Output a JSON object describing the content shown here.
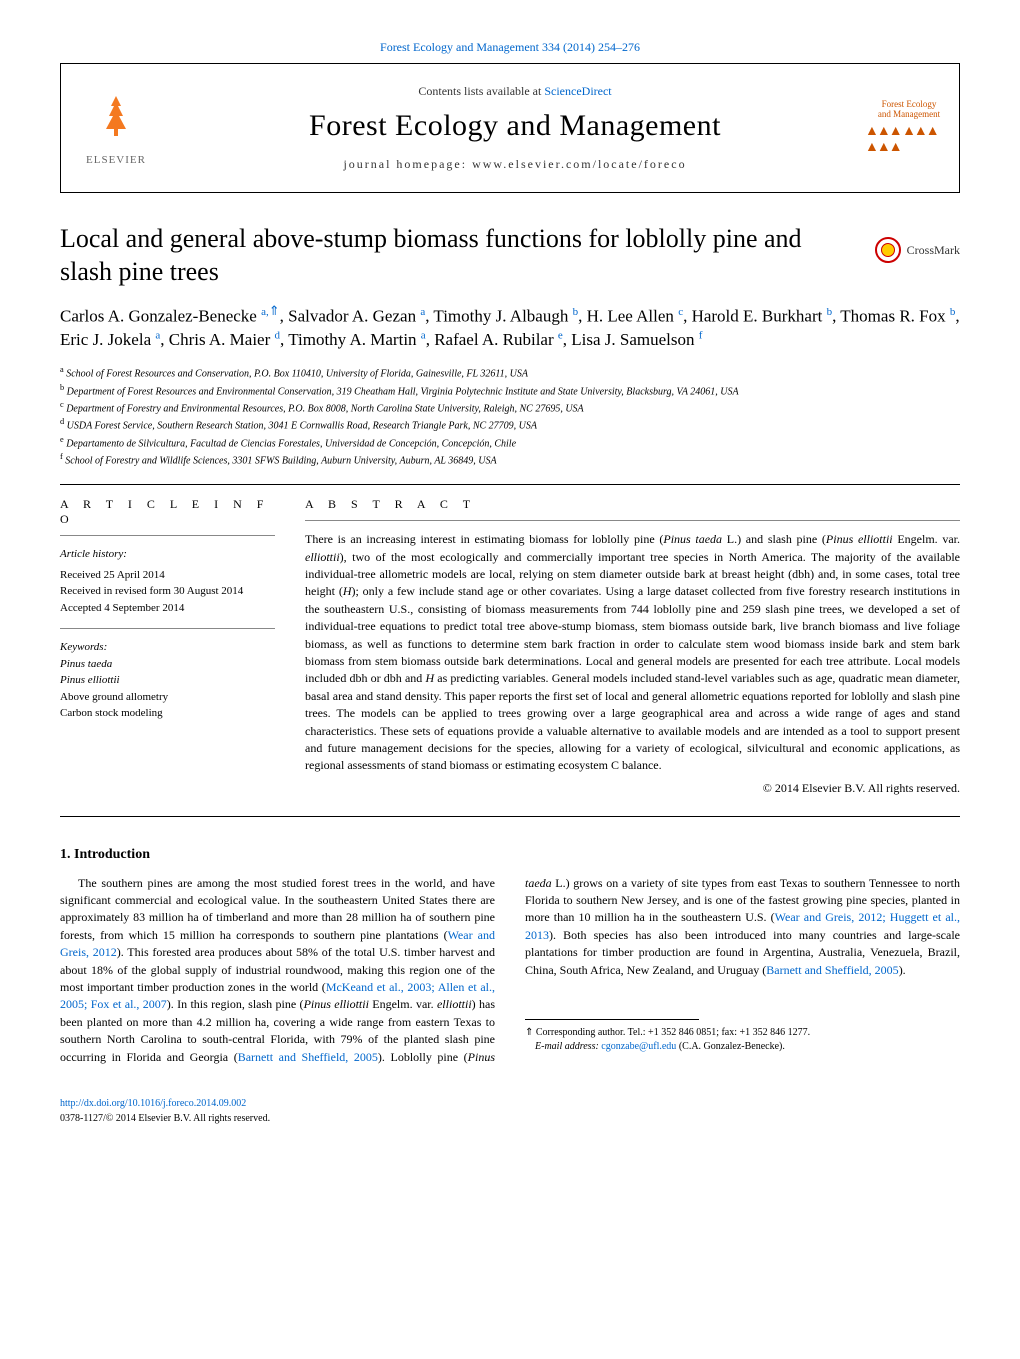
{
  "top_reference": "Forest Ecology and Management 334 (2014) 254–276",
  "header": {
    "contents_line_pre": "Contents lists available at ",
    "contents_line_link": "ScienceDirect",
    "journal_title": "Forest Ecology and Management",
    "homepage_line": "journal homepage: www.elsevier.com/locate/foreco",
    "elsevier_label": "ELSEVIER",
    "cover_line1": "Forest Ecology",
    "cover_line2": "and Management"
  },
  "crossmark_label": "CrossMark",
  "article_title": "Local and general above-stump biomass functions for loblolly pine and slash pine trees",
  "authors_html": "Carlos A. Gonzalez-Benecke <sup class='aff'>a,</sup><sup class='corr'>⇑</sup>, Salvador A. Gezan <sup class='aff'>a</sup>, Timothy J. Albaugh <sup class='aff'>b</sup>, H. Lee Allen <sup class='aff'>c</sup>, Harold E. Burkhart <sup class='aff'>b</sup>, Thomas R. Fox <sup class='aff'>b</sup>, Eric J. Jokela <sup class='aff'>a</sup>, Chris A. Maier <sup class='aff'>d</sup>, Timothy A. Martin <sup class='aff'>a</sup>, Rafael A. Rubilar <sup class='aff'>e</sup>, Lisa J. Samuelson <sup class='aff'>f</sup>",
  "affiliations": [
    {
      "sup": "a",
      "text": "School of Forest Resources and Conservation, P.O. Box 110410, University of Florida, Gainesville, FL 32611, USA"
    },
    {
      "sup": "b",
      "text": "Department of Forest Resources and Environmental Conservation, 319 Cheatham Hall, Virginia Polytechnic Institute and State University, Blacksburg, VA 24061, USA"
    },
    {
      "sup": "c",
      "text": "Department of Forestry and Environmental Resources, P.O. Box 8008, North Carolina State University, Raleigh, NC 27695, USA"
    },
    {
      "sup": "d",
      "text": "USDA Forest Service, Southern Research Station, 3041 E Cornwallis Road, Research Triangle Park, NC 27709, USA"
    },
    {
      "sup": "e",
      "text": "Departamento de Silvicultura, Facultad de Ciencias Forestales, Universidad de Concepción, Concepción, Chile"
    },
    {
      "sup": "f",
      "text": "School of Forestry and Wildlife Sciences, 3301 SFWS Building, Auburn University, Auburn, AL 36849, USA"
    }
  ],
  "article_info": {
    "heading": "A R T I C L E   I N F O",
    "history_label": "Article history:",
    "received": "Received 25 April 2014",
    "revised": "Received in revised form 30 August 2014",
    "accepted": "Accepted 4 September 2014",
    "keywords_label": "Keywords:",
    "keywords": [
      "Pinus taeda",
      "Pinus elliottii",
      "Above ground allometry",
      "Carbon stock modeling"
    ]
  },
  "abstract": {
    "heading": "A B S T R A C T",
    "text": "There is an increasing interest in estimating biomass for loblolly pine (Pinus taeda L.) and slash pine (Pinus elliottii Engelm. var. elliottii), two of the most ecologically and commercially important tree species in North America. The majority of the available individual-tree allometric models are local, relying on stem diameter outside bark at breast height (dbh) and, in some cases, total tree height (H); only a few include stand age or other covariates. Using a large dataset collected from five forestry research institutions in the southeastern U.S., consisting of biomass measurements from 744 loblolly pine and 259 slash pine trees, we developed a set of individual-tree equations to predict total tree above-stump biomass, stem biomass outside bark, live branch biomass and live foliage biomass, as well as functions to determine stem bark fraction in order to calculate stem wood biomass inside bark and stem bark biomass from stem biomass outside bark determinations. Local and general models are presented for each tree attribute. Local models included dbh or dbh and H as predicting variables. General models included stand-level variables such as age, quadratic mean diameter, basal area and stand density. This paper reports the first set of local and general allometric equations reported for loblolly and slash pine trees. The models can be applied to trees growing over a large geographical area and across a wide range of ages and stand characteristics. These sets of equations provide a valuable alternative to available models and are intended as a tool to support present and future management decisions for the species, allowing for a variety of ecological, silvicultural and economic applications, as regional assessments of stand biomass or estimating ecosystem C balance.",
    "copyright": "© 2014 Elsevier B.V. All rights reserved."
  },
  "intro": {
    "heading": "1. Introduction",
    "p1_pre": "The southern pines are among the most studied forest trees in the world, and have significant commercial and ecological value. In the southeastern United States there are approximately 83 million ha of timberland and more than 28 million ha of southern pine forests, from which 15 million ha corresponds to southern pine plantations (",
    "p1_cite1": "Wear and Greis, 2012",
    "p1_mid": "). This forested area produces about 58% of the total U.S. timber harvest and about 18% of the global supply of industrial roundwood, making this region one of the most important timber production zones in the world (",
    "p1_cite2": "McKeand et al., 2003; Allen et al., 2005; Fox et al., 2007",
    "p1_post": "). In this region, slash pine (Pinus elliottii Engelm. var. elliottii) has been planted on more than 4.2 million ha, covering a wide range from eastern Texas to southern North Carolina to south-central Florida, with 79% of the planted slash pine occurring in Florida and Georgia (",
    "p1_cite3": "Barnett and Sheffield, 2005",
    "p1_mid2": "). Loblolly pine (Pinus taeda L.) grows on a variety of site types from east Texas to southern Tennessee to north Florida to southern New Jersey, and is one of the fastest growing pine species, planted in more than 10 million ha in the southeastern U.S. (",
    "p1_cite4": "Wear and Greis, 2012; Huggett et al., 2013",
    "p1_mid3": "). Both species has also been introduced into many countries and large-scale plantations for timber production are found in Argentina, Australia, Venezuela, Brazil, China, South Africa, New Zealand, and Uruguay (",
    "p1_cite5": "Barnett and Sheffield, 2005",
    "p1_end": ")."
  },
  "footnote": {
    "corr_symbol": "⇑",
    "corr_text": " Corresponding author. Tel.: +1 352 846 0851; fax: +1 352 846 1277.",
    "email_label": "E-mail address: ",
    "email": "cgonzabe@ufl.edu",
    "email_paren": " (C.A. Gonzalez-Benecke)."
  },
  "doi": {
    "link": "http://dx.doi.org/10.1016/j.foreco.2014.09.002",
    "issn": "0378-1127/© 2014 Elsevier B.V. All rights reserved."
  }
}
